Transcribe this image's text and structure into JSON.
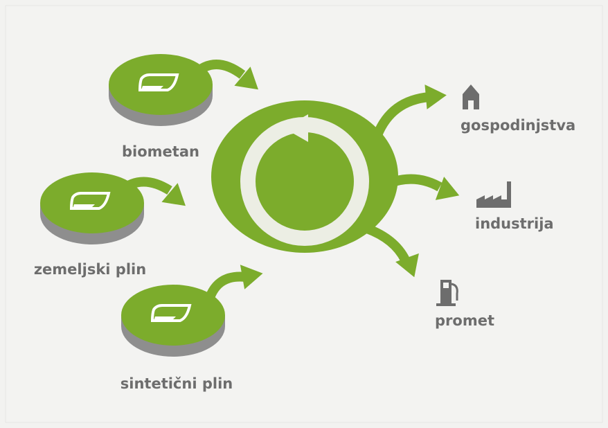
{
  "sources": [
    {
      "label": "biometan"
    },
    {
      "label": "zemeljski plin"
    },
    {
      "label": "sintetični plin"
    }
  ],
  "outputs": [
    {
      "label": "gospodinjstva"
    },
    {
      "label": "industrija"
    },
    {
      "label": "promet"
    }
  ]
}
